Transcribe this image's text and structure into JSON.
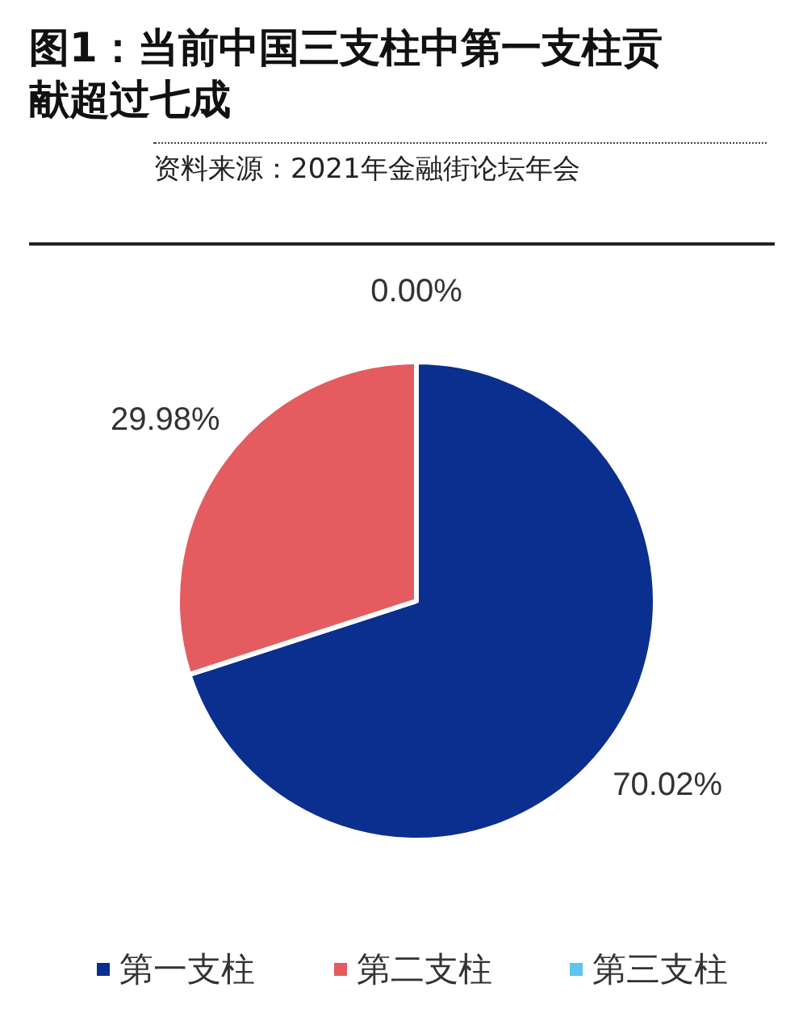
{
  "chart_data": {
    "type": "pie",
    "title": "图1：当前中国三支柱中第一支柱贡献超过七成",
    "subtitle": "资料来源：2021年金融街论坛年会",
    "categories": [
      "第一支柱",
      "第二支柱",
      "第三支柱"
    ],
    "values": [
      70.02,
      29.98,
      0.0
    ],
    "value_labels": [
      "70.02%",
      "29.98%",
      "0.00%"
    ],
    "colors": [
      "#0b2f8f",
      "#e45c5f",
      "#5fc3ee"
    ],
    "legend": "bottom"
  }
}
